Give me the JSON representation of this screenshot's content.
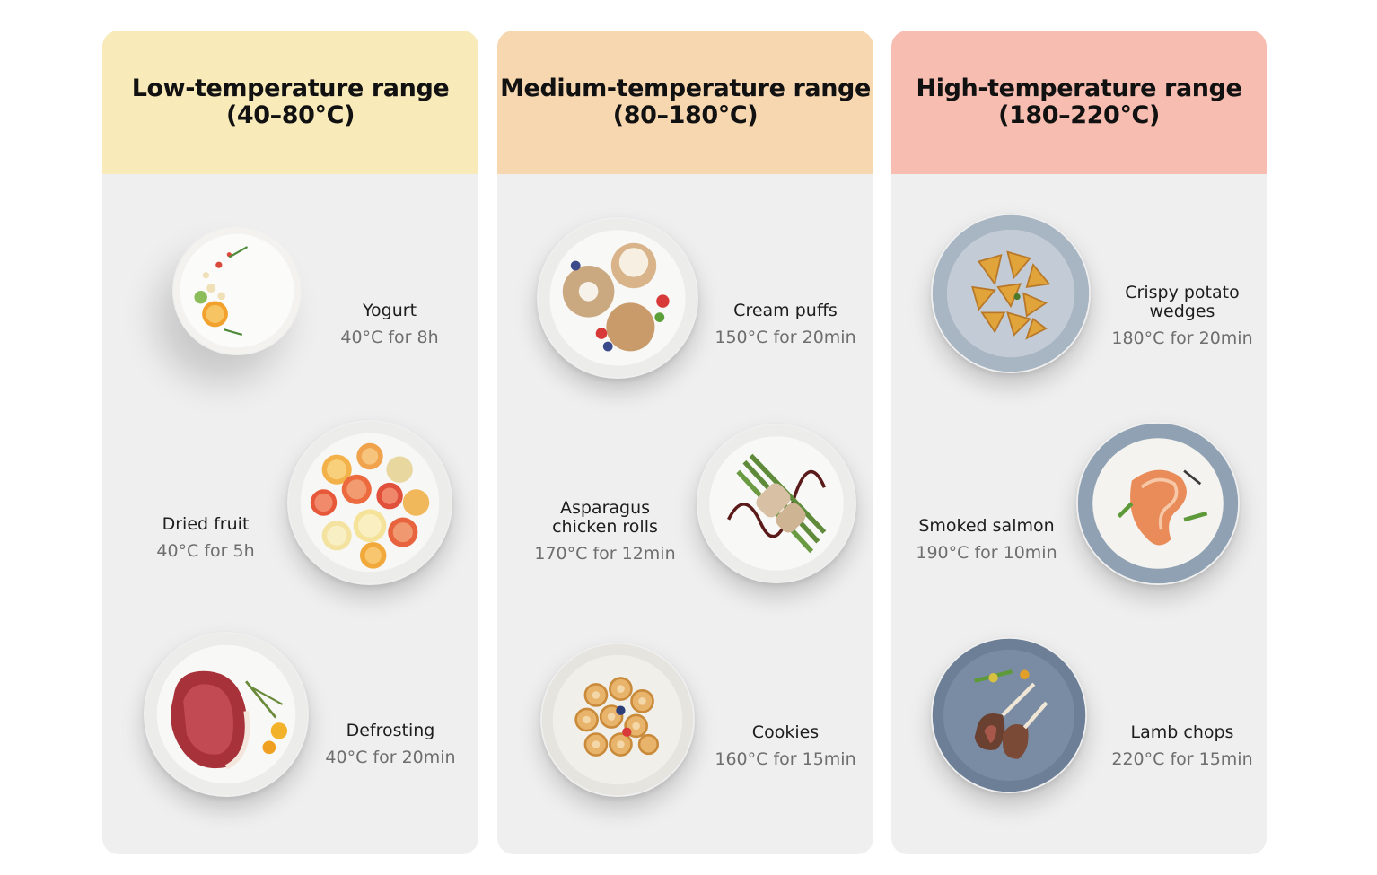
{
  "columns": [
    {
      "id": "low",
      "title": "Low-temperature range",
      "range": "(40–80°C)",
      "header_color": "#f8eab9",
      "items": [
        {
          "name_lines": [
            "Yogurt"
          ],
          "time": "40°C for 8h",
          "icon": "yogurt-bowl-icon"
        },
        {
          "name_lines": [
            "Dried fruit"
          ],
          "time": "40°C for 5h",
          "icon": "dried-fruit-plate-icon"
        },
        {
          "name_lines": [
            "Defrosting"
          ],
          "time": "40°C for 20min",
          "icon": "steak-plate-icon"
        }
      ]
    },
    {
      "id": "medium",
      "title": "Medium-temperature range",
      "range": "(80–180°C)",
      "header_color": "#f7d7b0",
      "items": [
        {
          "name_lines": [
            "Cream puffs"
          ],
          "time": "150°C for 20min",
          "icon": "cream-puffs-plate-icon"
        },
        {
          "name_lines": [
            "Asparagus",
            "chicken rolls"
          ],
          "time": "170°C for 12min",
          "icon": "asparagus-rolls-plate-icon"
        },
        {
          "name_lines": [
            "Cookies"
          ],
          "time": "160°C for 15min",
          "icon": "cookies-plate-icon"
        }
      ]
    },
    {
      "id": "high",
      "title": "High-temperature range",
      "range": "(180–220°C)",
      "header_color": "#f6bdb0",
      "items": [
        {
          "name_lines": [
            "Crispy potato",
            "wedges"
          ],
          "time": "180°C for 20min",
          "icon": "potato-wedges-plate-icon"
        },
        {
          "name_lines": [
            "Smoked salmon"
          ],
          "time": "190°C for 10min",
          "icon": "salmon-plate-icon"
        },
        {
          "name_lines": [
            "Lamb chops"
          ],
          "time": "220°C for 15min",
          "icon": "lamb-chops-plate-icon"
        }
      ]
    }
  ]
}
